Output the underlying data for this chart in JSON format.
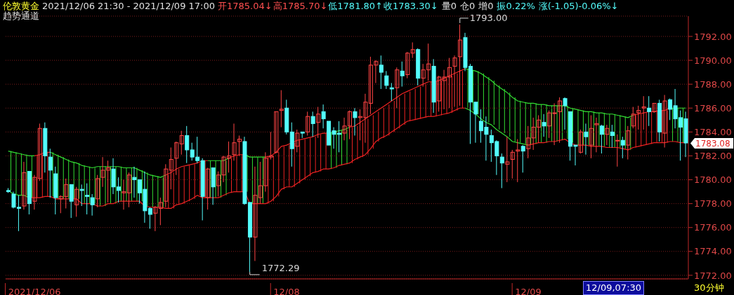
{
  "chart_data": {
    "type": "candlestick",
    "title": "伦敦黄金",
    "subtitle": "2021/12/06 21:30 - 2021/12/09 17:00",
    "categories": [
      null,
      null,
      null,
      null,
      null,
      "2021/12/06",
      null,
      null,
      null,
      null,
      null,
      null,
      null,
      null,
      null,
      null,
      null,
      null,
      null,
      null,
      null,
      null,
      null,
      null,
      null,
      null,
      null,
      null,
      null,
      null,
      null,
      null,
      null,
      null,
      null,
      null,
      null,
      null,
      null,
      null,
      null,
      null,
      null,
      null,
      null,
      null,
      null,
      null,
      null,
      null,
      null,
      null,
      null,
      "12/08",
      null,
      null,
      null,
      null,
      null,
      null,
      null,
      null,
      null,
      null,
      null,
      null,
      null,
      null,
      null,
      null,
      null,
      null,
      null,
      null,
      null,
      null,
      null,
      null,
      null,
      null,
      null,
      null,
      null,
      null,
      null,
      null,
      null,
      null,
      null,
      null,
      null,
      null,
      null,
      null,
      null,
      null,
      null,
      null,
      null,
      "12/09",
      null,
      null,
      null,
      null,
      null,
      null,
      null,
      null,
      null,
      null,
      null,
      null,
      null,
      null,
      null,
      null,
      null,
      null,
      null,
      null,
      null,
      null,
      null,
      null,
      null,
      null,
      null,
      null,
      null,
      null
    ],
    "ohlc": [
      [
        1779.1,
        1779.3,
        1778.9,
        1779.0
      ],
      [
        1778.8,
        1779.0,
        1777.6,
        1777.7
      ],
      [
        1777.7,
        1778.7,
        1775.7,
        1777.6
      ],
      [
        1777.8,
        1781.5,
        1777.5,
        1780.6
      ],
      [
        1780.7,
        1780.7,
        1777.1,
        1778.0
      ],
      [
        1778.2,
        1780.4,
        1777.5,
        1780.2
      ],
      [
        1780.1,
        1784.7,
        1779.9,
        1784.3
      ],
      [
        1784.3,
        1784.8,
        1780.6,
        1782.0
      ],
      [
        1781.9,
        1782.6,
        1778.5,
        1780.8
      ],
      [
        1780.5,
        1781.1,
        1777.1,
        1778.5
      ],
      [
        1778.4,
        1778.7,
        1777.2,
        1778.6
      ],
      [
        1778.6,
        1780.1,
        1777.6,
        1779.6
      ],
      [
        1779.6,
        1779.6,
        1776.8,
        1778.2
      ],
      [
        1777.9,
        1779.4,
        1776.9,
        1779.2
      ],
      [
        1779.2,
        1779.6,
        1777.8,
        1779.1
      ],
      [
        1778.7,
        1779.7,
        1777.1,
        1778.6
      ],
      [
        1778.5,
        1778.8,
        1777.0,
        1777.9
      ],
      [
        1778.4,
        1780.4,
        1777.7,
        1780.1
      ],
      [
        1780.2,
        1781.9,
        1779.4,
        1780.8
      ],
      [
        1780.8,
        1781.6,
        1778.1,
        1781.0
      ],
      [
        1780.9,
        1781.8,
        1778.8,
        1779.4
      ],
      [
        1779.4,
        1780.2,
        1778.1,
        1779.1
      ],
      [
        1778.9,
        1780.0,
        1777.5,
        1779.0
      ],
      [
        1778.9,
        1780.6,
        1777.7,
        1780.4
      ],
      [
        1780.2,
        1781.1,
        1778.5,
        1780.0
      ],
      [
        1780.0,
        1780.0,
        1778.0,
        1778.9
      ],
      [
        1779.2,
        1780.7,
        1776.4,
        1777.4
      ],
      [
        1777.6,
        1777.7,
        1775.9,
        1777.1
      ],
      [
        1777.2,
        1777.8,
        1775.7,
        1777.7
      ],
      [
        1777.6,
        1778.5,
        1776.2,
        1778.1
      ],
      [
        1778.2,
        1781.3,
        1777.7,
        1780.9
      ],
      [
        1780.8,
        1782.7,
        1779.2,
        1781.7
      ],
      [
        1781.8,
        1783.2,
        1780.4,
        1783.1
      ],
      [
        1783.0,
        1784.1,
        1782.1,
        1783.7
      ],
      [
        1783.7,
        1784.5,
        1781.4,
        1782.5
      ],
      [
        1782.5,
        1783.1,
        1781.6,
        1781.9
      ],
      [
        1781.9,
        1783.6,
        1781.4,
        1781.6
      ],
      [
        1781.6,
        1781.8,
        1776.6,
        1778.6
      ],
      [
        1778.5,
        1781.0,
        1777.5,
        1780.9
      ],
      [
        1781.0,
        1781.0,
        1777.9,
        1779.4
      ],
      [
        1779.5,
        1780.7,
        1778.6,
        1780.4
      ],
      [
        1780.4,
        1782.0,
        1779.8,
        1781.9
      ],
      [
        1781.8,
        1783.2,
        1780.6,
        1782.0
      ],
      [
        1782.1,
        1784.7,
        1781.6,
        1783.1
      ],
      [
        1783.2,
        1783.7,
        1782.0,
        1783.4
      ],
      [
        1783.2,
        1783.6,
        1777.9,
        1778.0
      ],
      [
        1778.1,
        1778.1,
        1772.29,
        1775.2
      ],
      [
        1775.2,
        1781.1,
        1773.2,
        1778.7
      ],
      [
        1778.5,
        1781.5,
        1778.0,
        1779.5
      ],
      [
        1779.5,
        1782.3,
        1779.0,
        1781.8
      ],
      [
        1781.9,
        1784.0,
        1781.7,
        1782.0
      ],
      [
        1782.3,
        1785.7,
        1782.2,
        1785.7
      ],
      [
        1785.8,
        1787.5,
        1784.4,
        1785.9
      ],
      [
        1786.0,
        1786.7,
        1783.8,
        1784.0
      ],
      [
        1784.0,
        1784.8,
        1781.1,
        1782.6
      ],
      [
        1782.8,
        1784.2,
        1782.3,
        1783.9
      ],
      [
        1784.0,
        1784.0,
        1783.5,
        1783.9
      ],
      [
        1784.0,
        1785.7,
        1783.7,
        1785.3
      ],
      [
        1785.3,
        1785.7,
        1783.6,
        1784.7
      ],
      [
        1784.8,
        1786.1,
        1783.5,
        1785.5
      ],
      [
        1785.7,
        1786.3,
        1784.3,
        1785.1
      ],
      [
        1784.9,
        1784.9,
        1782.9,
        1782.9
      ],
      [
        1784.1,
        1784.4,
        1782.6,
        1783.8
      ],
      [
        1783.9,
        1784.9,
        1782.3,
        1783.8
      ],
      [
        1783.9,
        1785.2,
        1783.3,
        1784.5
      ],
      [
        1784.5,
        1785.8,
        1783.4,
        1785.7
      ],
      [
        1785.7,
        1786.0,
        1783.7,
        1785.2
      ],
      [
        1785.2,
        1785.9,
        1783.3,
        1785.3
      ],
      [
        1785.2,
        1787.2,
        1783.1,
        1786.5
      ],
      [
        1786.4,
        1790.3,
        1785.5,
        1789.6
      ],
      [
        1789.6,
        1790.0,
        1788.1,
        1789.9
      ],
      [
        1789.6,
        1790.4,
        1787.6,
        1789.0
      ],
      [
        1788.7,
        1789.1,
        1787.6,
        1787.9
      ],
      [
        1787.7,
        1788.1,
        1786.6,
        1787.6
      ],
      [
        1787.7,
        1789.4,
        1786.0,
        1789.2
      ],
      [
        1789.1,
        1789.9,
        1787.8,
        1788.7
      ],
      [
        1788.8,
        1790.7,
        1788.5,
        1790.6
      ],
      [
        1790.6,
        1791.5,
        1790.2,
        1790.9
      ],
      [
        1790.9,
        1791.0,
        1787.9,
        1788.5
      ],
      [
        1788.5,
        1789.7,
        1787.8,
        1789.2
      ],
      [
        1789.2,
        1791.4,
        1788.3,
        1789.7
      ],
      [
        1789.5,
        1790.1,
        1785.6,
        1786.5
      ],
      [
        1786.6,
        1788.7,
        1785.7,
        1788.6
      ],
      [
        1788.3,
        1789.2,
        1785.9,
        1788.6
      ],
      [
        1788.6,
        1790.2,
        1786.0,
        1789.4
      ],
      [
        1789.5,
        1790.4,
        1786.1,
        1790.2
      ],
      [
        1790.3,
        1793.0,
        1786.2,
        1791.7
      ],
      [
        1791.9,
        1792.3,
        1789.1,
        1789.4
      ],
      [
        1789.5,
        1789.7,
        1783.0,
        1786.5
      ],
      [
        1786.5,
        1786.5,
        1783.1,
        1785.5
      ],
      [
        1784.9,
        1785.9,
        1783.1,
        1784.1
      ],
      [
        1784.4,
        1785.3,
        1781.6,
        1783.8
      ],
      [
        1783.7,
        1784.2,
        1781.5,
        1783.1
      ],
      [
        1783.2,
        1783.3,
        1780.4,
        1782.0
      ],
      [
        1781.9,
        1782.2,
        1779.3,
        1781.4
      ],
      [
        1781.3,
        1783.6,
        1779.8,
        1781.5
      ],
      [
        1781.7,
        1782.5,
        1780.1,
        1782.3
      ],
      [
        1782.4,
        1783.4,
        1779.8,
        1782.5
      ],
      [
        1782.8,
        1782.9,
        1780.6,
        1782.4
      ],
      [
        1782.6,
        1784.5,
        1781.8,
        1783.5
      ],
      [
        1783.5,
        1785.2,
        1782.5,
        1784.4
      ],
      [
        1784.4,
        1785.4,
        1783.1,
        1785.0
      ],
      [
        1784.8,
        1785.5,
        1783.6,
        1784.5
      ],
      [
        1784.5,
        1785.8,
        1783.5,
        1785.6
      ],
      [
        1785.6,
        1786.4,
        1782.9,
        1785.6
      ],
      [
        1785.7,
        1786.9,
        1783.1,
        1786.6
      ],
      [
        1786.8,
        1786.9,
        1784.2,
        1786.2
      ],
      [
        1785.7,
        1785.7,
        1781.6,
        1782.8
      ],
      [
        1782.9,
        1782.9,
        1781.2,
        1782.8
      ],
      [
        1782.3,
        1784.2,
        1782.2,
        1784.0
      ],
      [
        1784.0,
        1784.7,
        1782.1,
        1783.6
      ],
      [
        1782.9,
        1785.4,
        1781.8,
        1784.3
      ],
      [
        1784.6,
        1785.2,
        1782.3,
        1784.7
      ],
      [
        1784.5,
        1784.6,
        1782.2,
        1783.8
      ],
      [
        1783.8,
        1784.6,
        1782.9,
        1784.3
      ],
      [
        1784.0,
        1784.6,
        1782.7,
        1783.7
      ],
      [
        1783.3,
        1783.8,
        1781.1,
        1783.3
      ],
      [
        1783.3,
        1783.6,
        1781.8,
        1782.9
      ],
      [
        1782.9,
        1784.5,
        1781.7,
        1784.1
      ],
      [
        1784.5,
        1786.1,
        1784.3,
        1785.5
      ],
      [
        1785.6,
        1786.2,
        1784.2,
        1785.8
      ],
      [
        1786.0,
        1787.0,
        1784.2,
        1786.1
      ],
      [
        1786.0,
        1787.0,
        1784.5,
        1785.7
      ],
      [
        1785.7,
        1786.4,
        1785.6,
        1786.4
      ],
      [
        1786.4,
        1786.7,
        1783.2,
        1784.0
      ],
      [
        1783.9,
        1787.1,
        1782.7,
        1786.6
      ],
      [
        1786.7,
        1786.8,
        1785.0,
        1785.9
      ],
      [
        1786.2,
        1787.6,
        1784.3,
        1785.1
      ],
      [
        1785.2,
        1785.8,
        1781.6,
        1784.4
      ],
      [
        1785.1,
        1785.7,
        1781.9,
        1783.08
      ]
    ],
    "series": [
      {
        "type": "line",
        "color": "#33dd33",
        "values": [
          1782.4,
          1782.3,
          1782.2,
          1782.1,
          1782.0,
          1782.0,
          null,
          null,
          1782.3,
          1782.1,
          1781.9,
          1781.7,
          1781.5,
          1781.4,
          1781.2,
          1781.1,
          1781.0,
          1781.1,
          1781.1,
          1781.1,
          1781.1,
          1781.1,
          1781.0,
          1781.0,
          1781.0,
          1780.8,
          1780.6,
          1780.4,
          1780.3,
          1780.2,
          1780.4,
          null,
          null,
          null,
          null,
          null,
          null,
          null,
          1781.6,
          1781.6,
          1781.6,
          1781.6,
          1781.8,
          null,
          null,
          1782.1,
          1781.9,
          1781.9,
          1781.9,
          1781.9,
          null,
          null,
          null,
          null,
          null,
          null,
          null,
          null,
          null,
          null,
          null,
          1783.9,
          1784.0,
          1784.1,
          1784.2,
          1784.4,
          null,
          null,
          null,
          null,
          null,
          null,
          null,
          null,
          null,
          null,
          null,
          null,
          null,
          null,
          null,
          null,
          null,
          null,
          null,
          null,
          null,
          1789.3,
          1789.2,
          1789.1,
          1788.9,
          1788.6,
          1788.3,
          1787.9,
          1787.6,
          1787.3,
          1786.9,
          1786.6,
          1786.5,
          1786.4,
          1786.4,
          1786.3,
          1786.3,
          1786.2,
          1786.2,
          1786.2,
          1786.2,
          1786.0,
          1785.9,
          1785.8,
          1785.7,
          1785.7,
          1785.6,
          1785.6,
          1785.5,
          1785.5,
          1785.4,
          1785.3,
          1785.2,
          1785.4,
          null,
          null,
          null,
          null,
          null,
          null,
          1786.0,
          1786.0,
          1786.0,
          1786.0
        ]
      },
      {
        "type": "line",
        "color": "#ee2222",
        "values": [
          null,
          null,
          null,
          null,
          null,
          1782.0,
          1782.1,
          1782.3,
          1782.3,
          null,
          null,
          null,
          null,
          null,
          null,
          null,
          null,
          null,
          null,
          null,
          null,
          null,
          null,
          null,
          null,
          null,
          null,
          null,
          null,
          null,
          1780.4,
          1780.6,
          1780.9,
          1781.1,
          1781.2,
          1781.3,
          1781.4,
          1781.6,
          1781.6,
          null,
          null,
          null,
          1781.8,
          1782.0,
          1782.1,
          1782.1,
          null,
          null,
          null,
          1781.9,
          1782.0,
          1782.3,
          1782.8,
          1782.9,
          1783.1,
          1783.3,
          1783.4,
          1783.5,
          1783.6,
          1783.8,
          1783.9,
          1783.9,
          null,
          null,
          null,
          1784.4,
          1784.5,
          1784.8,
          1785.1,
          1785.4,
          1785.7,
          1786.0,
          1786.3,
          1786.6,
          1786.9,
          1787.2,
          1787.4,
          1787.6,
          1787.8,
          1788.0,
          1788.2,
          1788.2,
          1788.3,
          1788.5,
          1788.7,
          1788.9,
          1789.1,
          1789.3,
          null,
          null,
          null,
          null,
          null,
          null,
          null,
          null,
          null,
          null,
          null,
          null,
          null,
          null,
          null,
          null,
          null,
          null,
          null,
          null,
          null,
          null,
          null,
          null,
          null,
          null,
          null,
          null,
          null,
          null,
          null,
          1785.4,
          1785.5,
          1785.6,
          1785.7,
          1785.7,
          1785.8,
          1785.8,
          1786.0,
          null,
          null,
          null
        ]
      },
      {
        "type": "line",
        "color": "#33dd33",
        "values": [
          1779.1,
          1778.8,
          1778.7,
          1778.7,
          1778.5,
          null,
          null,
          null,
          null,
          null,
          null,
          null,
          null,
          null,
          null,
          null,
          null,
          null,
          null,
          null,
          null,
          null,
          null,
          null,
          null,
          null,
          null,
          null,
          null,
          null,
          null,
          null,
          null,
          null,
          null,
          null,
          null,
          null,
          null,
          null,
          null,
          null,
          null,
          null,
          null,
          null,
          null,
          null,
          null,
          null,
          null,
          null,
          null,
          null,
          null,
          null,
          null,
          null,
          null,
          null,
          null,
          null,
          null,
          null,
          null,
          null,
          null,
          null,
          null,
          null,
          null,
          null,
          null,
          null,
          null,
          null,
          null,
          null,
          null,
          null,
          null,
          null,
          null,
          null,
          null,
          null,
          null,
          1786.0,
          1785.8,
          1785.5,
          1785.1,
          1784.8,
          1784.6,
          1784.2,
          1783.9,
          1783.6,
          1783.2,
          1783.1,
          1783.0,
          1782.9,
          null,
          null,
          null,
          null,
          null,
          null,
          null,
          null,
          null,
          null,
          null,
          null,
          null,
          null,
          null,
          null,
          null,
          null,
          null,
          null,
          null,
          null,
          null,
          null,
          null,
          null,
          null,
          null,
          null,
          null
        ]
      },
      {
        "type": "line",
        "color": "#ee2222",
        "values": [
          null,
          null,
          null,
          null,
          1778.5,
          1778.5,
          1778.5,
          1778.6,
          1778.6,
          1778.4,
          1778.4,
          1778.4,
          1778.4,
          1778.4,
          1778.0,
          1778.0,
          1778.0,
          1777.8,
          1777.8,
          1778.0,
          1778.0,
          1778.2,
          1778.2,
          1778.2,
          1778.2,
          1778.2,
          1777.8,
          1777.7,
          1777.7,
          1777.7,
          1777.6,
          1777.6,
          1777.9,
          1778.0,
          1778.2,
          1778.4,
          1778.7,
          1778.5,
          1778.5,
          1778.5,
          1778.5,
          1778.7,
          1778.9,
          1779.0,
          1779.0,
          1779.0,
          1778.0,
          1778.0,
          1778.0,
          1778.0,
          1778.2,
          1778.6,
          1779.2,
          1779.4,
          1779.4,
          1779.7,
          1780.0,
          1780.3,
          1780.6,
          1780.7,
          1780.9,
          1780.9,
          1781.0,
          1781.2,
          1781.3,
          1781.4,
          1781.7,
          1781.9,
          1782.1,
          1782.6,
          1783.2,
          1783.5,
          1783.7,
          1784.0,
          1784.3,
          1784.6,
          1784.9,
          1785.0,
          1785.1,
          1785.2,
          1785.3,
          1785.3,
          1785.4,
          1785.5,
          1785.6,
          1785.8,
          1786.0,
          1786.0,
          null,
          null,
          null,
          null,
          null,
          null,
          null,
          null,
          null,
          null,
          null,
          1782.9,
          1783.0,
          1783.1,
          1783.1,
          1783.2,
          1783.2,
          1783.3,
          1783.4,
          1783.1,
          1782.9,
          1782.9,
          1782.9,
          1782.8,
          1782.8,
          1782.8,
          1782.7,
          1782.7,
          1782.7,
          1782.6,
          1782.5,
          1782.7,
          1782.8,
          1782.9,
          1783.0,
          1783.1,
          1783.1,
          1783.1,
          1783.2,
          1783.2,
          1783.1,
          1783.1
        ]
      }
    ],
    "ylim": [
      1771.7,
      1793.7
    ],
    "yticks": [
      {
        "value": 1772,
        "label": "1772.00"
      },
      {
        "value": 1774,
        "label": "1774.00"
      },
      {
        "value": 1776,
        "label": "1776.00"
      },
      {
        "value": 1778,
        "label": "1778.00"
      },
      {
        "value": 1780,
        "label": "1780.00"
      },
      {
        "value": 1782,
        "label": "1782.00"
      },
      {
        "value": 1784,
        "label": "1784.00"
      },
      {
        "value": 1786,
        "label": "1786.00"
      },
      {
        "value": 1788,
        "label": "1788.00"
      },
      {
        "value": 1790,
        "label": "1790.00"
      },
      {
        "value": 1792,
        "label": "1792.00"
      }
    ],
    "grid": "y",
    "annotations": [
      "开1785.04↓",
      "高1785.70↓",
      "低1781.80↑",
      "收1783.30↓",
      "量0",
      "仓0",
      "增0",
      "振0.22%",
      "涨(-1.05)-0.06%↓",
      "趋势通道",
      "12/09,07:30",
      "30分钟",
      "1793.00",
      "1772.29",
      "1783.08"
    ]
  }
}
